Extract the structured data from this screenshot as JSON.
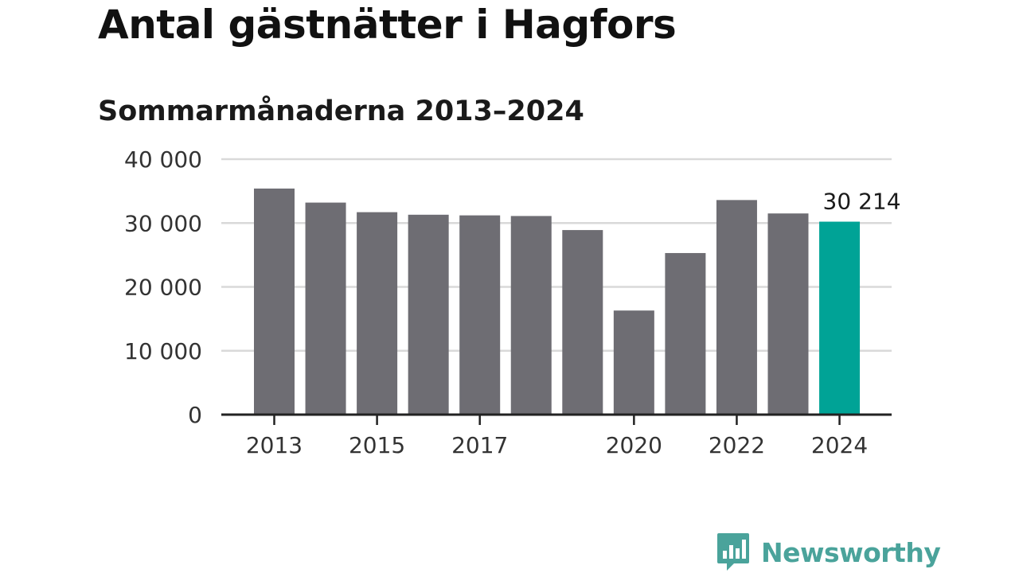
{
  "title": "Antal gästnätter i Hagfors",
  "subtitle": "Sommarmånaderna 2013–2024",
  "brand": {
    "name": "Newsworthy",
    "icon": "bar-chart-speech-bubble-icon",
    "color": "#4aa39b"
  },
  "colors": {
    "bar": "#6e6d73",
    "highlight": "#00a396",
    "grid": "#d9d9d9",
    "axis": "#222222"
  },
  "chart_data": {
    "type": "bar",
    "categories": [
      "2013",
      "2014",
      "2015",
      "2016",
      "2017",
      "2018",
      "2019",
      "2020",
      "2021",
      "2022",
      "2023",
      "2024"
    ],
    "values": [
      35400,
      33200,
      31700,
      31300,
      31200,
      31100,
      28900,
      16300,
      25300,
      33600,
      31500,
      30214
    ],
    "highlight_index": 11,
    "data_labels": [
      {
        "index": 11,
        "text": "30 214"
      }
    ],
    "x_tick_labels": [
      "2013",
      "2015",
      "2017",
      "2020",
      "2022",
      "2024"
    ],
    "y_ticks": [
      0,
      10000,
      20000,
      30000,
      40000
    ],
    "y_tick_labels": [
      "0",
      "10 000",
      "20 000",
      "30 000",
      "40 000"
    ],
    "ylim": [
      0,
      40000
    ],
    "grid": true,
    "legend": false,
    "xlabel": "",
    "ylabel": ""
  }
}
